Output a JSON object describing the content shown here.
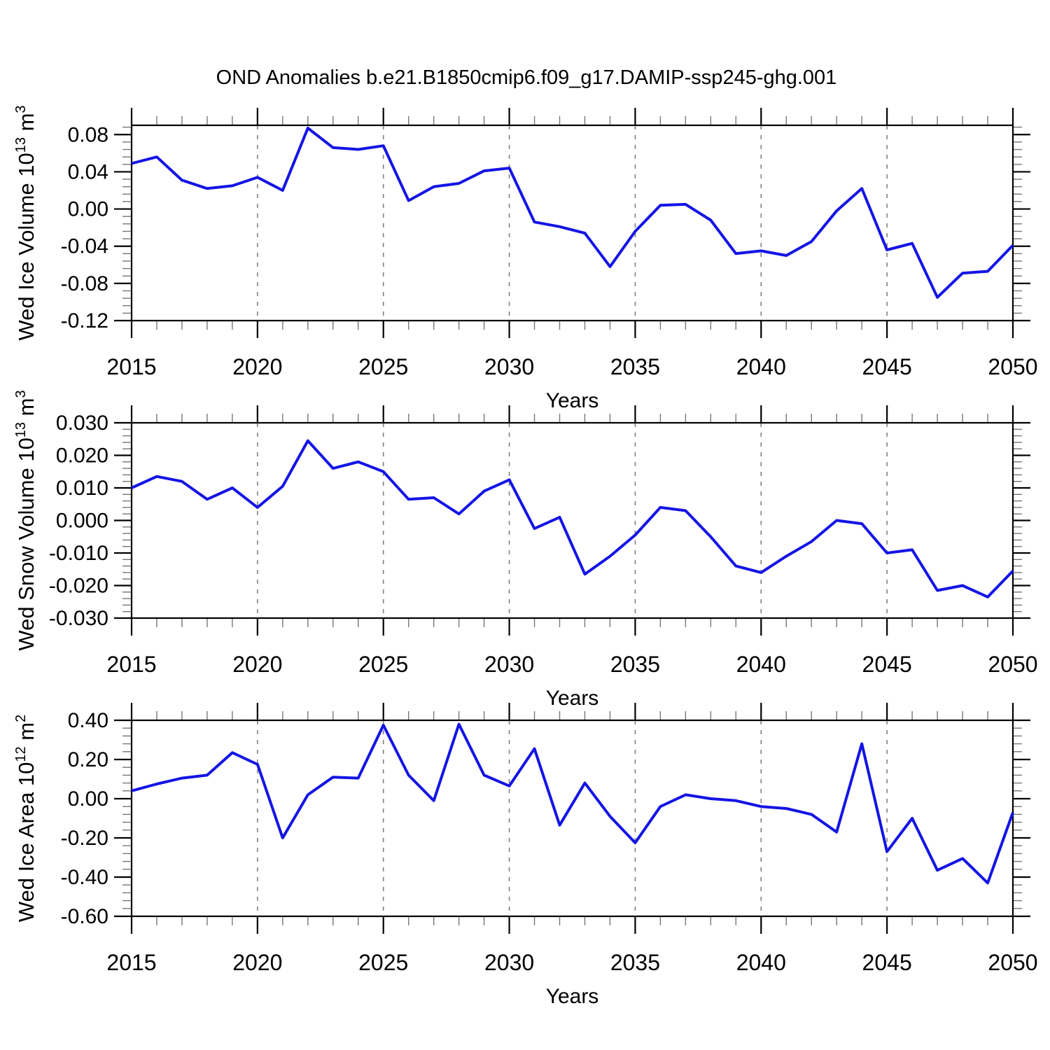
{
  "title": "OND Anomalies b.e21.B1850cmip6.f09_g17.DAMIP-ssp245-ghg.001",
  "figure": {
    "background": "#ffffff",
    "line_color": "#1414e6",
    "frame_color": "#000000",
    "grid_color": "#808080",
    "minor_tick_color": "#777777"
  },
  "chart_data": [
    {
      "type": "line",
      "ylabel": "Wed Ice Volume 10^13 m^3",
      "ylabel_parts": [
        {
          "t": "Wed Ice Volume 10",
          "sup": false
        },
        {
          "t": "13",
          "sup": true
        },
        {
          "t": " m",
          "sup": false
        },
        {
          "t": "3",
          "sup": true
        }
      ],
      "xlabel": "Years",
      "x": [
        2015,
        2016,
        2017,
        2018,
        2019,
        2020,
        2021,
        2022,
        2023,
        2024,
        2025,
        2026,
        2027,
        2028,
        2029,
        2030,
        2031,
        2032,
        2033,
        2034,
        2035,
        2036,
        2037,
        2038,
        2039,
        2040,
        2041,
        2042,
        2043,
        2044,
        2045,
        2046,
        2047,
        2048,
        2049,
        2050
      ],
      "values": [
        0.049,
        0.056,
        0.031,
        0.022,
        0.025,
        0.034,
        0.02,
        0.087,
        0.066,
        0.064,
        0.068,
        0.009,
        0.024,
        0.0275,
        0.041,
        0.044,
        -0.014,
        -0.019,
        -0.026,
        -0.062,
        -0.024,
        0.004,
        0.005,
        -0.012,
        -0.048,
        -0.045,
        -0.05,
        -0.035,
        -0.002,
        0.022,
        -0.044,
        -0.037,
        -0.095,
        -0.069,
        -0.067,
        -0.039
      ],
      "ylim": [
        -0.12,
        0.09
      ],
      "yticks": [
        {
          "value": 0.08,
          "label": "0.08"
        },
        {
          "value": 0.04,
          "label": "0.04"
        },
        {
          "value": 0.0,
          "label": "0.00"
        },
        {
          "value": -0.04,
          "label": "-0.04"
        },
        {
          "value": -0.08,
          "label": "-0.08"
        },
        {
          "value": -0.12,
          "label": "-0.12"
        }
      ],
      "y_minor_step": 0.008,
      "xlim": [
        2015,
        2050
      ],
      "xticks": [
        {
          "year": 2015,
          "label": "2015"
        },
        {
          "year": 2020,
          "label": "2020"
        },
        {
          "year": 2025,
          "label": "2025"
        },
        {
          "year": 2030,
          "label": "2030"
        },
        {
          "year": 2035,
          "label": "2035"
        },
        {
          "year": 2040,
          "label": "2040"
        },
        {
          "year": 2045,
          "label": "2045"
        },
        {
          "year": 2050,
          "label": "2050"
        }
      ],
      "x_minor_step": 1,
      "grid_years": [
        2020,
        2025,
        2030,
        2035,
        2040,
        2045
      ],
      "grid": "vertical-dashed",
      "legend": "none"
    },
    {
      "type": "line",
      "ylabel": "Wed Snow Volume 10^13 m^3",
      "ylabel_parts": [
        {
          "t": "Wed Snow Volume 10",
          "sup": false
        },
        {
          "t": "13",
          "sup": true
        },
        {
          "t": " m",
          "sup": false
        },
        {
          "t": "3",
          "sup": true
        }
      ],
      "xlabel": "Years",
      "x": [
        2015,
        2016,
        2017,
        2018,
        2019,
        2020,
        2021,
        2022,
        2023,
        2024,
        2025,
        2026,
        2027,
        2028,
        2029,
        2030,
        2031,
        2032,
        2033,
        2034,
        2035,
        2036,
        2037,
        2038,
        2039,
        2040,
        2041,
        2042,
        2043,
        2044,
        2045,
        2046,
        2047,
        2048,
        2049,
        2050
      ],
      "values": [
        0.01,
        0.0135,
        0.012,
        0.0065,
        0.01,
        0.004,
        0.0105,
        0.0245,
        0.016,
        0.018,
        0.015,
        0.0065,
        0.007,
        0.002,
        0.009,
        0.0125,
        -0.0025,
        0.001,
        -0.0165,
        -0.011,
        -0.0045,
        0.004,
        0.003,
        -0.005,
        -0.014,
        -0.016,
        -0.011,
        -0.0065,
        0.0,
        -0.001,
        -0.01,
        -0.009,
        -0.0215,
        -0.02,
        -0.0235,
        -0.0155
      ],
      "ylim": [
        -0.03,
        0.03
      ],
      "yticks": [
        {
          "value": 0.03,
          "label": "0.030"
        },
        {
          "value": 0.02,
          "label": "0.020"
        },
        {
          "value": 0.01,
          "label": "0.010"
        },
        {
          "value": 0.0,
          "label": "0.000"
        },
        {
          "value": -0.01,
          "label": "-0.010"
        },
        {
          "value": -0.02,
          "label": "-0.020"
        },
        {
          "value": -0.03,
          "label": "-0.030"
        }
      ],
      "y_minor_step": 0.002,
      "xlim": [
        2015,
        2050
      ],
      "xticks": [
        {
          "year": 2015,
          "label": "2015"
        },
        {
          "year": 2020,
          "label": "2020"
        },
        {
          "year": 2025,
          "label": "2025"
        },
        {
          "year": 2030,
          "label": "2030"
        },
        {
          "year": 2035,
          "label": "2035"
        },
        {
          "year": 2040,
          "label": "2040"
        },
        {
          "year": 2045,
          "label": "2045"
        },
        {
          "year": 2050,
          "label": "2050"
        }
      ],
      "x_minor_step": 1,
      "grid_years": [
        2020,
        2025,
        2030,
        2035,
        2040,
        2045
      ],
      "grid": "vertical-dashed",
      "legend": "none"
    },
    {
      "type": "line",
      "ylabel": "Wed Ice Area 10^12 m^2",
      "ylabel_parts": [
        {
          "t": "Wed Ice Area 10",
          "sup": false
        },
        {
          "t": "12",
          "sup": true
        },
        {
          "t": " m",
          "sup": false
        },
        {
          "t": "2",
          "sup": true
        }
      ],
      "xlabel": "Years",
      "x": [
        2015,
        2016,
        2017,
        2018,
        2019,
        2020,
        2021,
        2022,
        2023,
        2024,
        2025,
        2026,
        2027,
        2028,
        2029,
        2030,
        2031,
        2032,
        2033,
        2034,
        2035,
        2036,
        2037,
        2038,
        2039,
        2040,
        2041,
        2042,
        2043,
        2044,
        2045,
        2046,
        2047,
        2048,
        2049,
        2050
      ],
      "values": [
        0.04,
        0.075,
        0.105,
        0.12,
        0.235,
        0.175,
        -0.2,
        0.02,
        0.11,
        0.105,
        0.375,
        0.12,
        -0.01,
        0.38,
        0.12,
        0.065,
        0.255,
        -0.135,
        0.08,
        -0.09,
        -0.225,
        -0.04,
        0.02,
        0.0,
        -0.01,
        -0.04,
        -0.05,
        -0.08,
        -0.17,
        0.28,
        -0.27,
        -0.1,
        -0.365,
        -0.305,
        -0.43,
        -0.07
      ],
      "ylim": [
        -0.6,
        0.4
      ],
      "yticks": [
        {
          "value": 0.4,
          "label": "0.40"
        },
        {
          "value": 0.2,
          "label": "0.20"
        },
        {
          "value": 0.0,
          "label": "0.00"
        },
        {
          "value": -0.2,
          "label": "-0.20"
        },
        {
          "value": -0.4,
          "label": "-0.40"
        },
        {
          "value": -0.6,
          "label": "-0.60"
        }
      ],
      "y_minor_step": 0.04,
      "xlim": [
        2015,
        2050
      ],
      "xticks": [
        {
          "year": 2015,
          "label": "2015"
        },
        {
          "year": 2020,
          "label": "2020"
        },
        {
          "year": 2025,
          "label": "2025"
        },
        {
          "year": 2030,
          "label": "2030"
        },
        {
          "year": 2035,
          "label": "2035"
        },
        {
          "year": 2040,
          "label": "2040"
        },
        {
          "year": 2045,
          "label": "2045"
        },
        {
          "year": 2050,
          "label": "2050"
        }
      ],
      "x_minor_step": 1,
      "grid_years": [
        2020,
        2025,
        2030,
        2035,
        2040,
        2045
      ],
      "grid": "vertical-dashed",
      "legend": "none"
    }
  ]
}
